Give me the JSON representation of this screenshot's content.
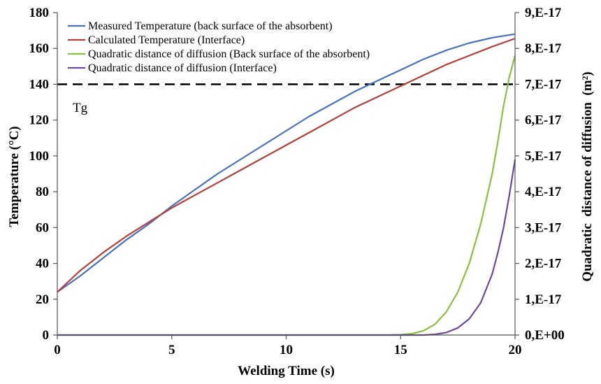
{
  "chart_data": {
    "type": "line",
    "title": "",
    "xlabel": "Welding Time (s)",
    "ylabel": "Temperature (°C)",
    "y2label": "Quadratic  distance of diffusion  (m²)",
    "xlim": [
      0,
      20
    ],
    "ylim": [
      0,
      180
    ],
    "y2lim": [
      0,
      9e-17
    ],
    "x_ticks": [
      0,
      5,
      10,
      15,
      20
    ],
    "y_ticks": [
      0,
      20,
      40,
      60,
      80,
      100,
      120,
      140,
      160,
      180
    ],
    "y2_ticks": [
      {
        "value": 0,
        "label": "0,E+00"
      },
      {
        "value": 1e-17,
        "label": "1,E-17"
      },
      {
        "value": 2e-17,
        "label": "2,E-17"
      },
      {
        "value": 3e-17,
        "label": "3,E-17"
      },
      {
        "value": 4e-17,
        "label": "4,E-17"
      },
      {
        "value": 5e-17,
        "label": "5,E-17"
      },
      {
        "value": 6e-17,
        "label": "6,E-17"
      },
      {
        "value": 7e-17,
        "label": "7,E-17"
      },
      {
        "value": 8e-17,
        "label": "8,E-17"
      },
      {
        "value": 9e-17,
        "label": "9,E-17"
      }
    ],
    "grid": false,
    "legend_position": "top-left",
    "series": [
      {
        "name": "Measured Temperature (back surface of the absorbent)",
        "axis": "left",
        "color": "#4a6fc0",
        "x": [
          0,
          1,
          2,
          3,
          4,
          5,
          6,
          7,
          8,
          9,
          10,
          11,
          12,
          13,
          14,
          15,
          16,
          17,
          18,
          19,
          20
        ],
        "y": [
          24,
          33,
          43,
          53,
          62,
          72,
          81,
          90,
          98,
          106,
          114,
          122,
          129,
          136,
          142,
          148,
          154,
          159,
          163,
          166,
          168
        ]
      },
      {
        "name": "Calculated Temperature (Interface)",
        "axis": "left",
        "color": "#b3403a",
        "x": [
          0,
          1,
          2,
          3,
          4,
          5,
          6,
          7,
          8,
          9,
          10,
          11,
          12,
          13,
          14,
          15,
          16,
          17,
          18,
          19,
          20
        ],
        "y": [
          24,
          36,
          46,
          55,
          63,
          71,
          78,
          85,
          92,
          99,
          106,
          113,
          120,
          127,
          133,
          139,
          145,
          151,
          156,
          161,
          165.5
        ]
      },
      {
        "name": "Quadratic distance of diffusion (Back surface of the absorbent)",
        "axis": "right",
        "color": "#8cbf3f",
        "x": [
          0,
          14.5,
          15,
          15.5,
          16,
          16.5,
          17,
          17.5,
          18,
          18.5,
          19,
          19.25,
          19.5,
          19.75,
          20
        ],
        "y": [
          0,
          0,
          1e-19,
          4e-19,
          1.2e-18,
          3e-18,
          6.5e-18,
          1.2e-17,
          2e-17,
          3.1e-17,
          4.5e-17,
          5.4e-17,
          6.4e-17,
          7.2e-17,
          7.8e-17
        ]
      },
      {
        "name": "Quadratic distance of diffusion (Interface)",
        "axis": "right",
        "color": "#6a4a9c",
        "x": [
          0,
          16,
          16.5,
          17,
          17.5,
          18,
          18.5,
          19,
          19.25,
          19.5,
          19.75,
          20
        ],
        "y": [
          0,
          0,
          2e-19,
          7e-19,
          2e-18,
          4.5e-18,
          9e-18,
          1.7e-17,
          2.3e-17,
          3e-17,
          3.9e-17,
          4.9e-17
        ]
      }
    ],
    "reference_line": {
      "y": 140,
      "label": "Tg",
      "style": "dashed",
      "color": "#000000"
    }
  }
}
